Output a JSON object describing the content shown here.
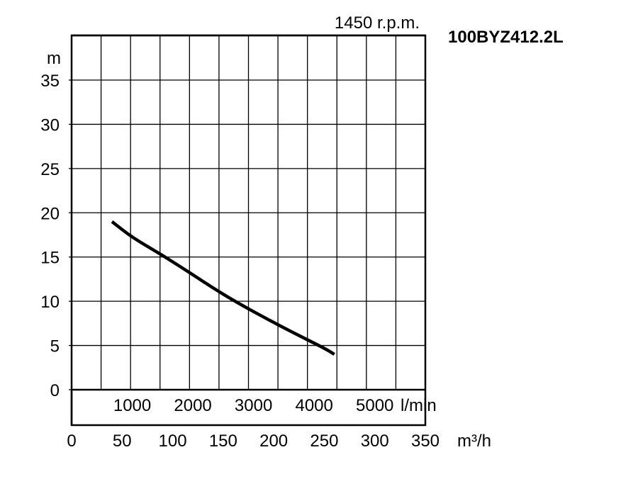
{
  "chart_data": {
    "type": "line",
    "title": "1450 r.p.m.",
    "model": "100BYZ412.2L",
    "ylabel": "m",
    "xlabel": "m³/h",
    "secondary_x_unit": "l/min",
    "xlim": [
      0,
      350
    ],
    "ylim": [
      0,
      35
    ],
    "grid": true,
    "y_ticks": [
      "0",
      "5",
      "10",
      "15",
      "20",
      "25",
      "30",
      "35"
    ],
    "x_ticks": [
      "0",
      "50",
      "100",
      "150",
      "200",
      "250",
      "300",
      "350"
    ],
    "lmin_ticks": [
      {
        "label": "1000",
        "value": 1000
      },
      {
        "label": "2000",
        "value": 2000
      },
      {
        "label": "3000",
        "value": 3000
      },
      {
        "label": "4000",
        "value": 4000
      },
      {
        "label": "5000",
        "value": 5000
      }
    ],
    "series": [
      {
        "x": [
          40,
          60,
          90,
          120,
          140,
          160,
          190,
          220,
          250,
          260
        ],
        "y": [
          19,
          17.2,
          15.2,
          13.0,
          11.5,
          10.1,
          8.2,
          6.4,
          4.7,
          4.0
        ]
      }
    ]
  }
}
